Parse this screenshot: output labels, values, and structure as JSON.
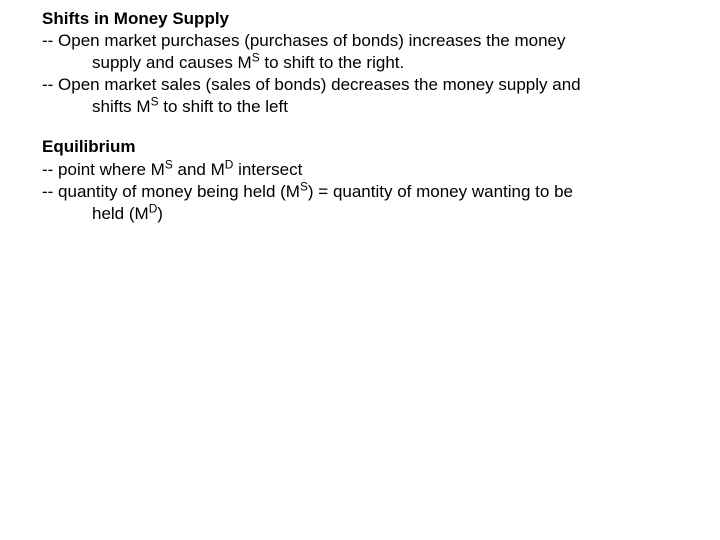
{
  "section1": {
    "heading": "Shifts in Money Supply",
    "bullet1_line1": "-- Open market purchases (purchases of bonds) increases the money",
    "bullet1_line2": "supply and causes M",
    "bullet1_line2_sup": "S",
    "bullet1_line2_cont": " to shift to the right.",
    "bullet2_line1": "-- Open market sales (sales of bonds) decreases the money supply and",
    "bullet2_line2": "shifts M",
    "bullet2_line2_sup": "S",
    "bullet2_line2_cont": " to shift to the left"
  },
  "section2": {
    "heading": "Equilibrium",
    "bullet1_pre": "-- point where M",
    "bullet1_sup1": "S",
    "bullet1_mid": " and M",
    "bullet1_sup2": "D",
    "bullet1_post": " intersect",
    "bullet2_pre": "-- quantity of money being held (M",
    "bullet2_sup1": "S",
    "bullet2_mid": ") = quantity of money wanting to be",
    "bullet2_line2_pre": "held (M",
    "bullet2_line2_sup": "D",
    "bullet2_line2_post": ")"
  }
}
